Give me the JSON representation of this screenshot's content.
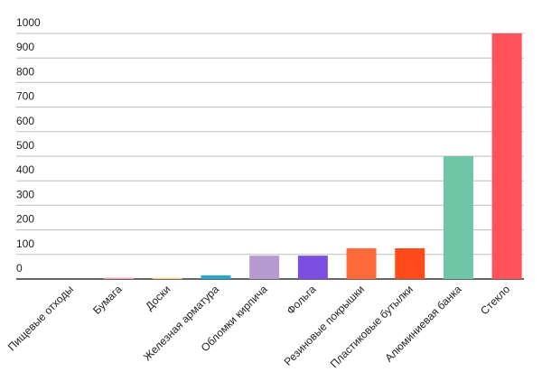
{
  "chart_data": {
    "type": "bar",
    "categories": [
      "Пищевые отходы",
      "Бумага",
      "Доски",
      "Железная арматура",
      "Обломки кирпича",
      "Фольга",
      "Резиновые покрышки",
      "Пластиковые бутылки",
      "Алюминиевая банка",
      "Стекло"
    ],
    "values": [
      0,
      5,
      5,
      15,
      95,
      95,
      125,
      125,
      500,
      1000
    ],
    "colors": [
      "#e57373",
      "#f4a3a3",
      "#f2d68a",
      "#26a9c9",
      "#b79bd0",
      "#7b4ee0",
      "#ff6a3d",
      "#ff4a1a",
      "#6fc6a6",
      "#ff525a"
    ],
    "ylim": [
      0,
      1000
    ],
    "yticks": [
      0,
      100,
      200,
      300,
      400,
      500,
      600,
      700,
      800,
      900,
      1000
    ],
    "grid": true
  }
}
